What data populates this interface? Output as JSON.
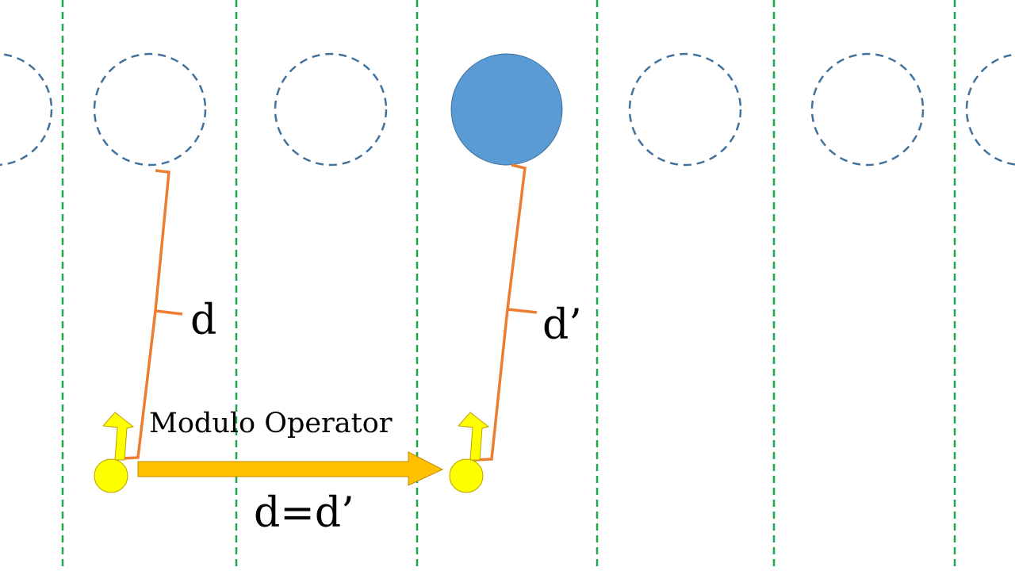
{
  "labels": {
    "d": "d",
    "d_prime": "d’",
    "operator": "Modulo Operator",
    "equation": "d=d’"
  },
  "colors": {
    "divider": "#1aa84a",
    "ghost_circle": "#41719c",
    "target_circle_fill": "#5b9bd5",
    "target_circle_stroke": "#41719c",
    "bracket": "#ed7d31",
    "agent_fill": "#ffff00",
    "agent_stroke": "#b8a000",
    "arrow_fill": "#ffc000",
    "arrow_stroke": "#c08c00"
  },
  "icons": {
    "agent": "yellow-circle-agent-icon",
    "heading": "up-arrow-icon",
    "transfer": "right-arrow-icon"
  }
}
